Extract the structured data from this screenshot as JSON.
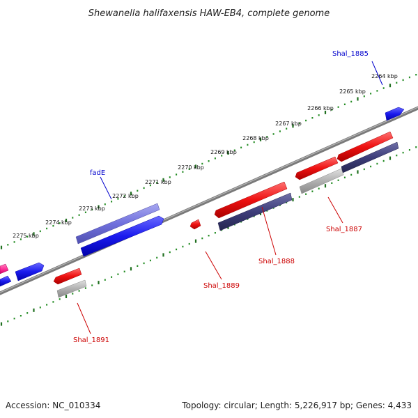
{
  "title": "Shewanella halifaxensis HAW-EB4, complete genome",
  "footer": {
    "accession": "Accession: NC_010334",
    "summary": "Topology: circular; Length: 5,226,917 bp; Genes: 4,433"
  },
  "scale_labels": [
    "2264 kbp",
    "2265 kbp",
    "2266 kbp",
    "2267 kbp",
    "2268 kbp",
    "2269 kbp",
    "2270 kbp",
    "2271 kbp",
    "2272 kbp",
    "2273 kbp",
    "2274 kbp",
    "2275 kbp"
  ],
  "gene_labels": [
    {
      "text": "Shal_1885",
      "color": "#0000cc"
    },
    {
      "text": "fadE",
      "color": "#0000cc"
    },
    {
      "text": "Shal_1887",
      "color": "#cc0000"
    },
    {
      "text": "Shal_1888",
      "color": "#cc0000"
    },
    {
      "text": "Shal_1889",
      "color": "#cc0000"
    },
    {
      "text": "Shal_1891",
      "color": "#cc0000"
    }
  ],
  "colors": {
    "backbone": "#7a7a7a",
    "scale_dots": "#228b22",
    "forward_gene": "#1a1aee",
    "fadE_gene": "#7070dd",
    "reverse_gene": "#ee1111",
    "cds_dark": "#3d3d7a",
    "cds_grey": "#b0b0b0",
    "pink_gene": "#ff3399"
  }
}
